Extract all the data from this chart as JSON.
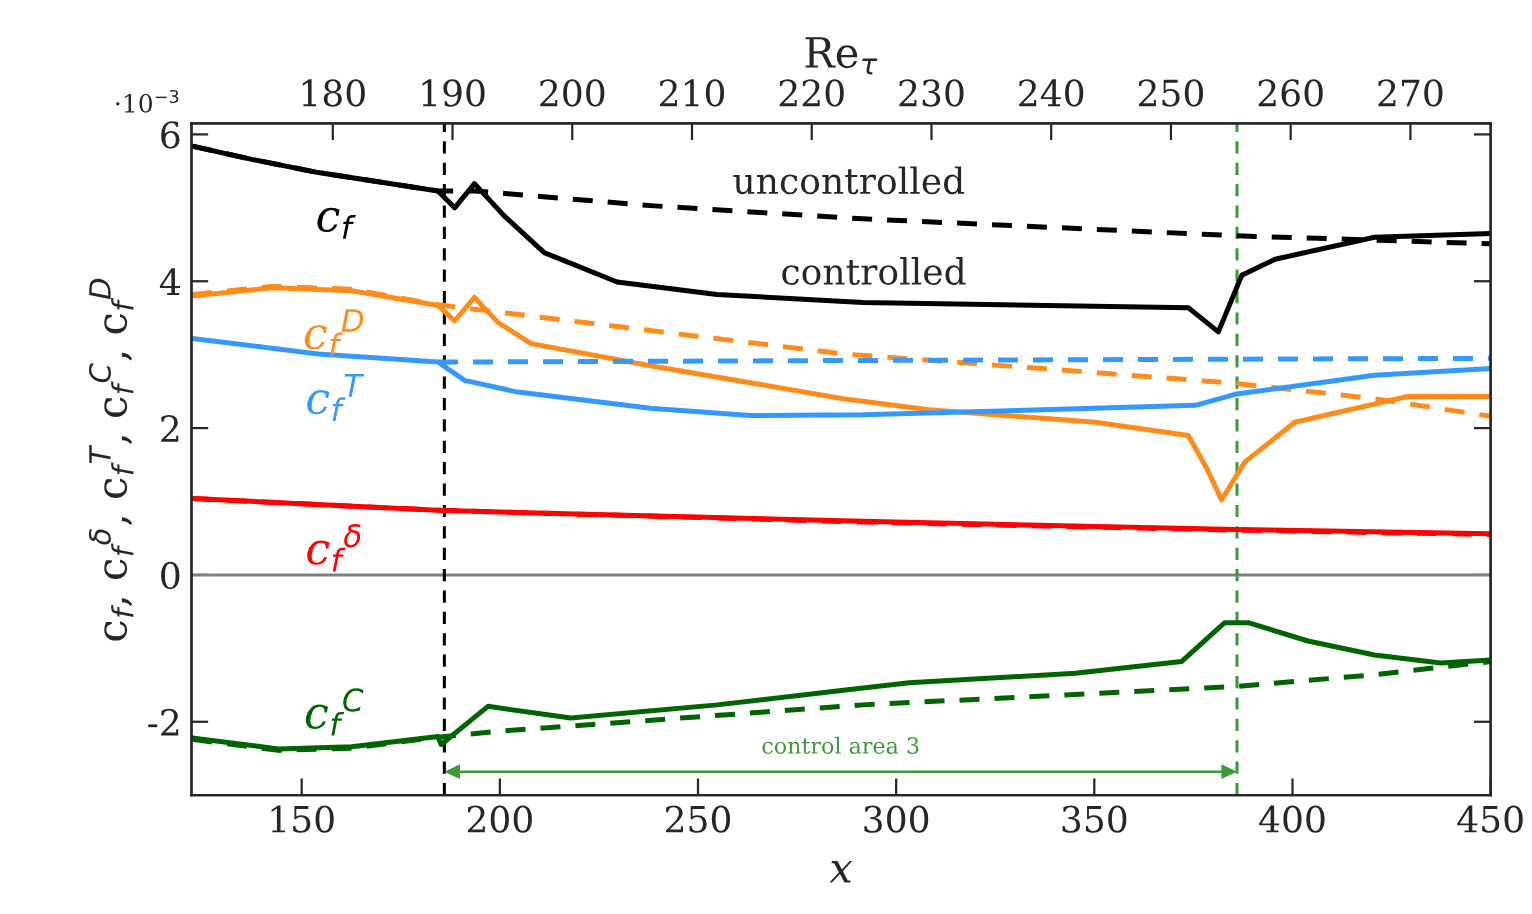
{
  "chart_data": {
    "type": "line",
    "xlabel": "x",
    "ylabel": "c$_{f}$, c$_{f}$$^{δ}$, c$_{f}$$^{T}$, c$_{f}$$^{C}$, c$_{f}$$^{D}$",
    "x2label": "Re$_{τ}$",
    "xlim": [
      122.2,
      450
    ],
    "xticks": [
      150,
      200,
      250,
      300,
      350,
      400,
      450
    ],
    "x2lim": [
      168.2,
      276.7
    ],
    "x2ticks": [
      180,
      190,
      200,
      210,
      220,
      230,
      240,
      250,
      260,
      270
    ],
    "ylim": [
      -3,
      6.15
    ],
    "yticks": [
      -2,
      0,
      2,
      4,
      6
    ],
    "grid": false,
    "legend": false,
    "series": [
      {
        "name": "c$_{f}$",
        "color": "#000000",
        "line_style": "solid",
        "x": [
          122.4,
          137.4,
          154.2,
          184.4,
          188.6,
          193.6,
          201.1,
          211.2,
          229.6,
          254.8,
          291.6,
          373.7,
          381.3,
          387.2,
          395.6,
          420.7,
          450
        ],
        "values": [
          5.84,
          5.66,
          5.48,
          5.23,
          5.0,
          5.33,
          4.89,
          4.39,
          3.99,
          3.82,
          3.71,
          3.64,
          3.31,
          4.08,
          4.3,
          4.6,
          4.65
        ]
      },
      {
        "color": "#000000",
        "line_style": "dashed",
        "x": [
          122.4,
          137.4,
          154.2,
          184.4,
          193.6,
          238,
          291.6,
          385.5,
          450
        ],
        "values": [
          5.84,
          5.66,
          5.48,
          5.23,
          5.23,
          5.03,
          4.85,
          4.62,
          4.51
        ]
      },
      {
        "name": "c$_{f}$$^{D}$",
        "color": "#ff8c1a",
        "line_style": "solid",
        "x": [
          122.4,
          142.4,
          162.6,
          184.4,
          188.6,
          193.6,
          199.5,
          207.9,
          238,
          286.6,
          308.4,
          350.3,
          373.7,
          378.4,
          382.1,
          388,
          400.6,
          429,
          450
        ],
        "values": [
          3.8,
          3.91,
          3.87,
          3.67,
          3.46,
          3.78,
          3.44,
          3.15,
          2.85,
          2.4,
          2.25,
          2.08,
          1.9,
          1.45,
          1.02,
          1.54,
          2.08,
          2.43,
          2.43
        ]
      },
      {
        "color": "#ff8c1a",
        "line_style": "dashed",
        "x": [
          122.4,
          142.4,
          162.6,
          184.4,
          199.5,
          286.6,
          336.9,
          385.5,
          420.7,
          450
        ],
        "values": [
          3.82,
          3.93,
          3.89,
          3.68,
          3.58,
          3.01,
          2.81,
          2.61,
          2.4,
          2.16
        ]
      },
      {
        "name": "c$_{f}$$^{T}$",
        "color": "#3399ff",
        "line_style": "solid",
        "x": [
          122.4,
          154.2,
          184.4,
          191.1,
          204.5,
          238,
          263.1,
          291.6,
          336.9,
          375.5,
          385.5,
          420.7,
          450
        ],
        "values": [
          3.22,
          3.01,
          2.9,
          2.65,
          2.49,
          2.27,
          2.17,
          2.18,
          2.25,
          2.31,
          2.46,
          2.72,
          2.81
        ]
      },
      {
        "color": "#3399ff",
        "line_style": "dashed",
        "x": [
          184.4,
          193.6,
          286.6,
          450
        ],
        "values": [
          2.9,
          2.9,
          2.92,
          2.95
        ]
      },
      {
        "name": "c$_{f}$$^{δ}$",
        "color": "#ff0000",
        "line_style": "solid",
        "x": [
          122.4,
          184.4,
          291.6,
          385.5,
          450
        ],
        "values": [
          1.04,
          0.88,
          0.73,
          0.62,
          0.56
        ]
      },
      {
        "color": "#ff0000",
        "line_style": "dashed",
        "x": [
          122.4,
          184.4,
          291.6,
          385.5,
          450
        ],
        "values": [
          1.04,
          0.88,
          0.72,
          0.61,
          0.55
        ]
      },
      {
        "name": "c$_{f}$$^{C}$",
        "color": "#006400",
        "line_style": "solid",
        "x": [
          122.4,
          144.2,
          162.6,
          184.4,
          185.2,
          197,
          217.9,
          254.8,
          291.6,
          303.3,
          345.2,
          372,
          382.9,
          388.8,
          403.9,
          420.7,
          437.4,
          450
        ],
        "values": [
          -2.22,
          -2.37,
          -2.34,
          -2.2,
          -2.31,
          -1.79,
          -1.95,
          -1.77,
          -1.54,
          -1.47,
          -1.34,
          -1.18,
          -0.65,
          -0.65,
          -0.9,
          -1.09,
          -1.2,
          -1.16
        ]
      },
      {
        "color": "#006400",
        "line_style": "dashed",
        "x": [
          122.4,
          144.2,
          162.6,
          184.4,
          199.5,
          291.6,
          336.9,
          385.5,
          420.7,
          450
        ],
        "values": [
          -2.24,
          -2.39,
          -2.36,
          -2.21,
          -2.13,
          -1.77,
          -1.65,
          -1.52,
          -1.36,
          -1.18
        ]
      }
    ],
    "ref_lines": [
      {
        "axis": "y",
        "value": 0,
        "color": "#808080",
        "line_style": "solid"
      },
      {
        "axis": "x",
        "value": 186,
        "color": "#000000",
        "line_style": "dashed"
      },
      {
        "axis": "x",
        "value": 386,
        "color": "#3a9a3a",
        "line_style": "dashed"
      }
    ],
    "annotations": [
      "·10$^{−3}$",
      "uncontrolled",
      "controlled",
      "control area 3"
    ]
  }
}
